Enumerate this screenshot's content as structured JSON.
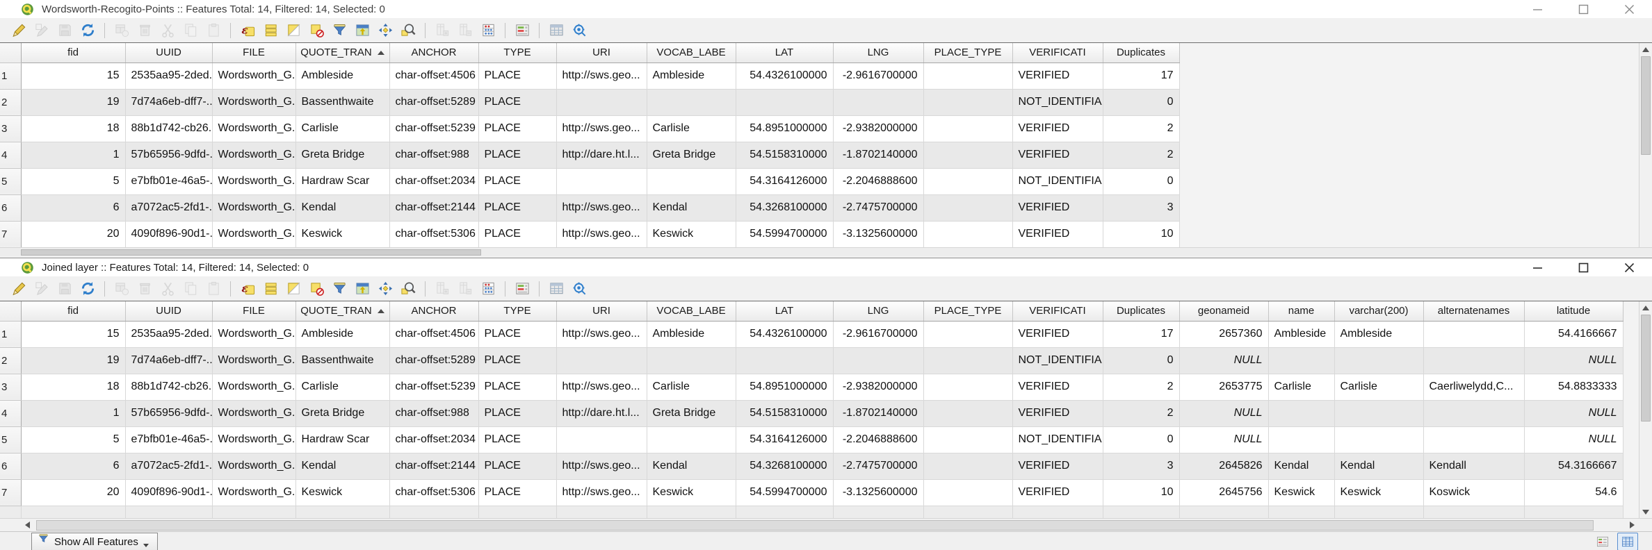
{
  "top_window": {
    "title": "Wordsworth-Recogito-Points :: Features Total: 14, Filtered: 14, Selected: 0",
    "table": {
      "columns": [
        "fid",
        "UUID",
        "FILE",
        "QUOTE_TRAN",
        "ANCHOR",
        "TYPE",
        "URI",
        "VOCAB_LABE",
        "LAT",
        "LNG",
        "PLACE_TYPE",
        "VERIFICATI",
        "Duplicates"
      ],
      "sort_column": "QUOTE_TRAN",
      "sort_order": "asc",
      "row_numbers": [
        "1",
        "2",
        "3",
        "4",
        "5",
        "6",
        "7"
      ],
      "rows": [
        [
          "15",
          "2535aa95-2ded...",
          "Wordsworth_G...",
          "Ambleside",
          "char-offset:4506",
          "PLACE",
          "http://sws.geo...",
          "Ambleside",
          "54.4326100000",
          "-2.9616700000",
          "",
          "VERIFIED",
          "17"
        ],
        [
          "19",
          "7d74a6eb-dff7-...",
          "Wordsworth_G...",
          "Bassenthwaite",
          "char-offset:5289",
          "PLACE",
          "",
          "",
          "",
          "",
          "",
          "NOT_IDENTIFIA...",
          "0"
        ],
        [
          "18",
          "88b1d742-cb26...",
          "Wordsworth_G...",
          "Carlisle",
          "char-offset:5239",
          "PLACE",
          "http://sws.geo...",
          "Carlisle",
          "54.8951000000",
          "-2.9382000000",
          "",
          "VERIFIED",
          "2"
        ],
        [
          "1",
          "57b65956-9dfd-...",
          "Wordsworth_G...",
          "Greta Bridge",
          "char-offset:988",
          "PLACE",
          "http://dare.ht.l...",
          "Greta Bridge",
          "54.5158310000",
          "-1.8702140000",
          "",
          "VERIFIED",
          "2"
        ],
        [
          "5",
          "e7bfb01e-46a5-...",
          "Wordsworth_G...",
          "Hardraw Scar",
          "char-offset:2034",
          "PLACE",
          "",
          "",
          "54.3164126000",
          "-2.2046888600",
          "",
          "NOT_IDENTIFIA...",
          "0"
        ],
        [
          "6",
          "a7072ac5-2fd1-...",
          "Wordsworth_G...",
          "Kendal",
          "char-offset:2144",
          "PLACE",
          "http://sws.geo...",
          "Kendal",
          "54.3268100000",
          "-2.7475700000",
          "",
          "VERIFIED",
          "3"
        ],
        [
          "20",
          "4090f896-90d1-...",
          "Wordsworth_G...",
          "Keswick",
          "char-offset:5306",
          "PLACE",
          "http://sws.geo...",
          "Keswick",
          "54.5994700000",
          "-3.1325600000",
          "",
          "VERIFIED",
          "10"
        ]
      ]
    }
  },
  "bottom_window": {
    "title": "Joined layer :: Features Total: 14, Filtered: 14, Selected: 0",
    "table": {
      "columns": [
        "fid",
        "UUID",
        "FILE",
        "QUOTE_TRAN",
        "ANCHOR",
        "TYPE",
        "URI",
        "VOCAB_LABE",
        "LAT",
        "LNG",
        "PLACE_TYPE",
        "VERIFICATI",
        "Duplicates",
        "geonameid",
        "name",
        "varchar(200)",
        "alternatenames",
        "latitude"
      ],
      "sort_column": "QUOTE_TRAN",
      "sort_order": "asc",
      "row_numbers": [
        "1",
        "2",
        "3",
        "4",
        "5",
        "6",
        "7"
      ],
      "rows": [
        [
          "15",
          "2535aa95-2ded...",
          "Wordsworth_G...",
          "Ambleside",
          "char-offset:4506",
          "PLACE",
          "http://sws.geo...",
          "Ambleside",
          "54.4326100000",
          "-2.9616700000",
          "",
          "VERIFIED",
          "17",
          "2657360",
          "Ambleside",
          "Ambleside",
          "",
          "54.4166667"
        ],
        [
          "19",
          "7d74a6eb-dff7-...",
          "Wordsworth_G...",
          "Bassenthwaite",
          "char-offset:5289",
          "PLACE",
          "",
          "",
          "",
          "",
          "",
          "NOT_IDENTIFIA...",
          "0",
          "NULL",
          "",
          "",
          "",
          "NULL"
        ],
        [
          "18",
          "88b1d742-cb26...",
          "Wordsworth_G...",
          "Carlisle",
          "char-offset:5239",
          "PLACE",
          "http://sws.geo...",
          "Carlisle",
          "54.8951000000",
          "-2.9382000000",
          "",
          "VERIFIED",
          "2",
          "2653775",
          "Carlisle",
          "Carlisle",
          "Caerliwelydd,C...",
          "54.8833333"
        ],
        [
          "1",
          "57b65956-9dfd-...",
          "Wordsworth_G...",
          "Greta Bridge",
          "char-offset:988",
          "PLACE",
          "http://dare.ht.l...",
          "Greta Bridge",
          "54.5158310000",
          "-1.8702140000",
          "",
          "VERIFIED",
          "2",
          "NULL",
          "",
          "",
          "",
          "NULL"
        ],
        [
          "5",
          "e7bfb01e-46a5-...",
          "Wordsworth_G...",
          "Hardraw Scar",
          "char-offset:2034",
          "PLACE",
          "",
          "",
          "54.3164126000",
          "-2.2046888600",
          "",
          "NOT_IDENTIFIA...",
          "0",
          "NULL",
          "",
          "",
          "",
          "NULL"
        ],
        [
          "6",
          "a7072ac5-2fd1-...",
          "Wordsworth_G...",
          "Kendal",
          "char-offset:2144",
          "PLACE",
          "http://sws.geo...",
          "Kendal",
          "54.3268100000",
          "-2.7475700000",
          "",
          "VERIFIED",
          "3",
          "2645826",
          "Kendal",
          "Kendal",
          "Kendall",
          "54.3166667"
        ],
        [
          "20",
          "4090f896-90d1-...",
          "Wordsworth_G...",
          "Keswick",
          "char-offset:5306",
          "PLACE",
          "http://sws.geo...",
          "Keswick",
          "54.5994700000",
          "-3.1325600000",
          "",
          "VERIFIED",
          "10",
          "2645756",
          "Keswick",
          "Keswick",
          "Koswick",
          "54.6"
        ]
      ]
    },
    "status_bar": {
      "filter_button_label": "Show All Features"
    }
  },
  "toolbar": {
    "icons": [
      {
        "name": "toggle-editing",
        "enabled": true
      },
      {
        "name": "multiedit",
        "enabled": false
      },
      {
        "name": "save-edits",
        "enabled": false
      },
      {
        "name": "reload",
        "enabled": true
      },
      {
        "name": "separator"
      },
      {
        "name": "add-feature",
        "enabled": false
      },
      {
        "name": "delete-selected",
        "enabled": false
      },
      {
        "name": "cut-features",
        "enabled": false
      },
      {
        "name": "copy-features",
        "enabled": false
      },
      {
        "name": "paste-features",
        "enabled": false
      },
      {
        "name": "separator"
      },
      {
        "name": "select-by-expression",
        "enabled": true
      },
      {
        "name": "select-all",
        "enabled": true
      },
      {
        "name": "invert-selection",
        "enabled": true
      },
      {
        "name": "deselect-all",
        "enabled": true
      },
      {
        "name": "filter-select",
        "enabled": true
      },
      {
        "name": "move-selection-to-top",
        "enabled": true
      },
      {
        "name": "pan-to-selection",
        "enabled": true
      },
      {
        "name": "zoom-to-selection",
        "enabled": true
      },
      {
        "name": "separator"
      },
      {
        "name": "new-field",
        "enabled": false
      },
      {
        "name": "delete-field",
        "enabled": false
      },
      {
        "name": "field-calculator",
        "enabled": true
      },
      {
        "name": "separator"
      },
      {
        "name": "conditional-formatting",
        "enabled": true
      },
      {
        "name": "separator"
      },
      {
        "name": "dock-table",
        "enabled": true
      },
      {
        "name": "search-settings",
        "enabled": true
      }
    ]
  },
  "colors": {
    "accent_blue": "#2e7ecb",
    "icon_yellow": "#f7df68",
    "selection_red": "#cc2222",
    "row_alt_gray": "#e9e9e9",
    "toolbar_gray": "#f1f1f1"
  }
}
